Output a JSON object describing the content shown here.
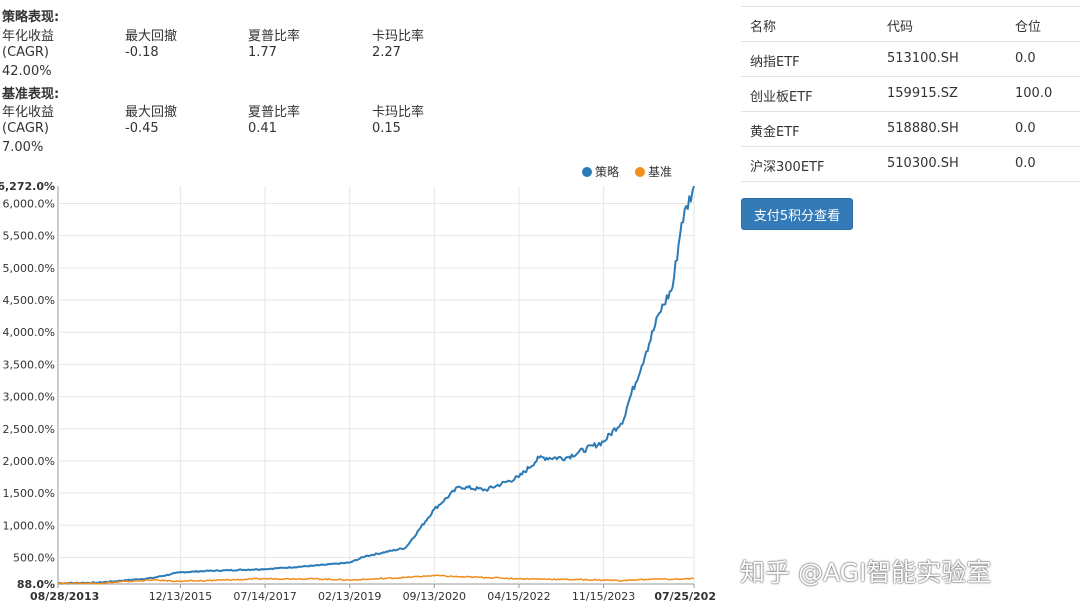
{
  "strategy": {
    "title": "策略表现:",
    "labels": [
      "年化收益",
      "最大回撤",
      "夏普比率",
      "卡玛比率"
    ],
    "cagr_suffix": "(CAGR)",
    "max_drawdown": "-0.18",
    "sharpe": "1.77",
    "calmar": "2.27",
    "cagr": "42.00%"
  },
  "benchmark": {
    "title": "基准表现:",
    "labels": [
      "年化收益",
      "最大回撤",
      "夏普比率",
      "卡玛比率"
    ],
    "cagr_suffix": "(CAGR)",
    "max_drawdown": "-0.45",
    "sharpe": "0.41",
    "calmar": "0.15",
    "cagr": "7.00%"
  },
  "holdings": {
    "headers": [
      "名称",
      "代码",
      "仓位"
    ],
    "rows": [
      [
        "纳指ETF",
        "513100.SH",
        "0.0"
      ],
      [
        "创业板ETF",
        "159915.SZ",
        "100.0"
      ],
      [
        "黄金ETF",
        "518880.SH",
        "0.0"
      ],
      [
        "沪深300ETF",
        "510300.SH",
        "0.0"
      ]
    ]
  },
  "pay_button": "支付5积分查看",
  "watermark": "知乎 @AGI智能实验室",
  "chart_data": {
    "type": "line",
    "legend_position": "top-right",
    "grid": true,
    "x_ticks": [
      "08/28/2013",
      "12/13/2015",
      "07/14/2017",
      "02/13/2019",
      "09/13/2020",
      "04/15/2022",
      "11/15/2023",
      "07/25/202"
    ],
    "y_ticks": [
      "88.0%",
      "500.0%",
      "1,000.0%",
      "1,500.0%",
      "2,000.0%",
      "2,500.0%",
      "3,000.0%",
      "3,500.0%",
      "4,000.0%",
      "4,500.0%",
      "5,000.0%",
      "5,500.0%",
      "6,000.0%",
      "6,272.0%"
    ],
    "ylim": [
      88,
      6272
    ],
    "x": [
      "2013-08-28",
      "2014-06",
      "2015-06",
      "2015-12-13",
      "2016-06",
      "2017-07-14",
      "2018-06",
      "2019-02-13",
      "2019-06",
      "2020-03",
      "2020-09-13",
      "2021-03",
      "2021-09",
      "2022-04-15",
      "2022-09",
      "2023-03",
      "2023-11-15",
      "2024-04",
      "2024-05",
      "2024-09",
      "2024-12",
      "2025-03",
      "2025-05",
      "2025-07-25"
    ],
    "series": [
      {
        "name": "策略",
        "color": "#2c7bb6",
        "values": [
          100,
          110,
          180,
          270,
          290,
          320,
          370,
          420,
          520,
          650,
          1250,
          1600,
          1550,
          1750,
          2050,
          2050,
          2300,
          2650,
          2900,
          3700,
          4300,
          4700,
          5700,
          6272
        ]
      },
      {
        "name": "基准",
        "color": "#f28e1c",
        "values": [
          100,
          100,
          150,
          130,
          140,
          170,
          170,
          150,
          160,
          190,
          220,
          200,
          190,
          170,
          165,
          160,
          150,
          140,
          145,
          160,
          165,
          160,
          165,
          170
        ]
      }
    ]
  }
}
